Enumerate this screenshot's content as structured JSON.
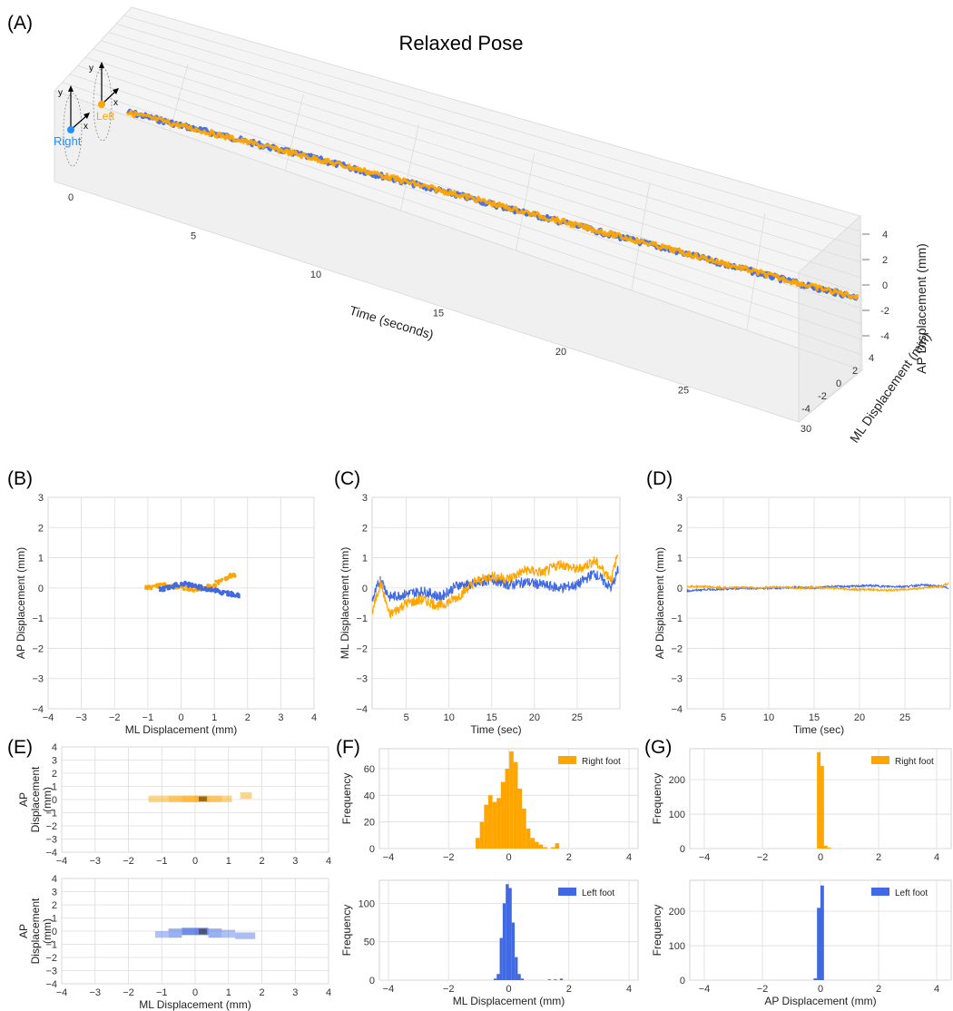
{
  "figure": {
    "colors": {
      "right": "#FFA500",
      "left": "#4169E1"
    }
  },
  "chart_data": [
    {
      "panel": "(A)",
      "type": "line",
      "title": "Relaxed Pose",
      "xlabel": "Time (seconds)",
      "ylabel": "ML Displacement (mm)",
      "zlabel": "AP Displacement (mm)",
      "xticks": [
        "0",
        "5",
        "10",
        "15",
        "20",
        "25",
        "30"
      ],
      "yticks": [
        "4",
        "2",
        "0",
        "-2",
        "-4"
      ],
      "zticks": [
        "4",
        "2",
        "0",
        "-2",
        "-4"
      ],
      "xlim": [
        0,
        30
      ],
      "ylim": [
        -4,
        4
      ],
      "zlim": [
        -4,
        4
      ],
      "inset": {
        "right_label": "Right",
        "left_label": "Left",
        "x_axis": "x",
        "y_axis": "y"
      },
      "series": [
        {
          "color": "#4169E1",
          "x": [
            0,
            2,
            4,
            6,
            8,
            10,
            12,
            14,
            16,
            18,
            20,
            22,
            24,
            26,
            28,
            30
          ],
          "y": [
            -0.4,
            -0.3,
            0.0,
            0.1,
            0.3,
            0.2,
            0.3,
            0.4,
            0.3,
            0.4,
            0.3,
            0.5,
            0.4,
            0.3,
            0.2,
            0.7
          ]
        },
        {
          "color": "#FFA500",
          "x": [
            0,
            2,
            4,
            6,
            8,
            10,
            12,
            14,
            16,
            18,
            20,
            22,
            24,
            26,
            28,
            30
          ],
          "y": [
            -0.6,
            -0.4,
            -0.2,
            0.0,
            0.3,
            0.5,
            0.4,
            0.6,
            0.5,
            0.6,
            0.6,
            0.7,
            0.6,
            0.5,
            0.4,
            0.9
          ]
        }
      ]
    },
    {
      "panel": "(B)",
      "type": "scatter",
      "xlabel": "ML Displacement (mm)",
      "ylabel": "AP Displacement (mm)",
      "xlim": [
        -4,
        4
      ],
      "ylim": [
        -4,
        3
      ],
      "xticks": [
        "−4",
        "−3",
        "−2",
        "−1",
        "0",
        "1",
        "2",
        "3",
        "4"
      ],
      "yticks": [
        "3",
        "2",
        "1",
        "0",
        "−1",
        "−2",
        "−3",
        "−4"
      ],
      "series": [
        {
          "color": "#FFA500",
          "x": [
            -1.1,
            -0.8,
            -0.5,
            -0.2,
            0.1,
            0.4,
            0.7,
            1.0,
            1.3,
            1.5,
            1.6
          ],
          "y": [
            0.0,
            0.05,
            0.1,
            0.05,
            0.0,
            -0.05,
            0.0,
            0.1,
            0.3,
            0.4,
            0.45
          ]
        },
        {
          "color": "#4169E1",
          "x": [
            -0.6,
            -0.3,
            0.0,
            0.3,
            0.6,
            0.9,
            1.2,
            1.5,
            1.7
          ],
          "y": [
            -0.05,
            0.05,
            0.15,
            0.1,
            0.0,
            -0.05,
            -0.15,
            -0.2,
            -0.25
          ]
        }
      ]
    },
    {
      "panel": "(C)",
      "type": "line",
      "xlabel": "Time (sec)",
      "ylabel": "ML Displacement (mm)",
      "xlim": [
        1,
        30
      ],
      "ylim": [
        -4,
        3
      ],
      "xticks": [
        "5",
        "10",
        "15",
        "20",
        "25"
      ],
      "yticks": [
        "3",
        "2",
        "1",
        "0",
        "−1",
        "−2",
        "−3",
        "−4"
      ],
      "series": [
        {
          "color": "#4169E1",
          "x": [
            1,
            2,
            3,
            5,
            7,
            9,
            11,
            13,
            15,
            17,
            19,
            21,
            23,
            25,
            27,
            29,
            29.8
          ],
          "y": [
            -0.4,
            0.3,
            -0.3,
            -0.2,
            -0.1,
            -0.3,
            0.1,
            0.1,
            0.3,
            0.1,
            0.2,
            0.1,
            0.0,
            0.1,
            0.5,
            0.0,
            0.6
          ]
        },
        {
          "color": "#FFA500",
          "x": [
            1,
            2,
            3,
            5,
            7,
            9,
            11,
            13,
            15,
            17,
            19,
            21,
            23,
            25,
            27,
            29,
            29.8
          ],
          "y": [
            -0.8,
            0.2,
            -0.9,
            -0.5,
            -0.4,
            -0.6,
            -0.3,
            0.2,
            0.4,
            0.3,
            0.6,
            0.5,
            0.8,
            0.6,
            0.9,
            0.3,
            1.2
          ]
        }
      ]
    },
    {
      "panel": "(D)",
      "type": "line",
      "xlabel": "Time (sec)",
      "ylabel": "AP Displacement (mm)",
      "xlim": [
        1,
        30
      ],
      "ylim": [
        -4,
        3
      ],
      "xticks": [
        "5",
        "10",
        "15",
        "20",
        "25"
      ],
      "yticks": [
        "3",
        "2",
        "1",
        "0",
        "−1",
        "−2",
        "−3",
        "−4"
      ],
      "series": [
        {
          "color": "#4169E1",
          "x": [
            1,
            3,
            5,
            7,
            9,
            11,
            13,
            15,
            17,
            19,
            21,
            23,
            25,
            27,
            29,
            29.8
          ],
          "y": [
            -0.1,
            -0.05,
            -0.05,
            0.0,
            -0.02,
            0.0,
            0.02,
            0.0,
            0.05,
            0.05,
            0.08,
            0.05,
            0.05,
            0.1,
            0.05,
            0.0
          ]
        },
        {
          "color": "#FFA500",
          "x": [
            1,
            3,
            5,
            7,
            9,
            11,
            13,
            15,
            17,
            19,
            21,
            23,
            25,
            27,
            29,
            29.8
          ],
          "y": [
            0.05,
            0.05,
            0.0,
            0.02,
            0.0,
            0.03,
            0.0,
            0.02,
            0.0,
            -0.05,
            -0.05,
            -0.08,
            -0.05,
            0.0,
            0.05,
            0.15
          ]
        }
      ]
    },
    {
      "panel": "(E)",
      "type": "heatmap",
      "xlabel": "ML Displacement (mm)",
      "ylabel": "AP Displacement (mm)",
      "xlim": [
        -4,
        4
      ],
      "ylim": [
        -4,
        4
      ],
      "xticks": [
        "−4",
        "−3",
        "−2",
        "−1",
        "0",
        "1",
        "2",
        "3",
        "4"
      ],
      "yticks": [
        "4",
        "3",
        "2",
        "1",
        "0",
        "−1",
        "−2",
        "−3",
        "−4"
      ],
      "top": {
        "color": "#FFA500",
        "cells": [
          {
            "x0": -1.4,
            "x1": -0.8,
            "y0": -0.2,
            "y1": 0.3,
            "v": 0.4
          },
          {
            "x0": -0.8,
            "x1": -0.4,
            "y0": -0.2,
            "y1": 0.3,
            "v": 0.7
          },
          {
            "x0": -0.4,
            "x1": 0.0,
            "y0": -0.2,
            "y1": 0.3,
            "v": 0.9
          },
          {
            "x0": 0.0,
            "x1": 0.4,
            "y0": -0.2,
            "y1": 0.3,
            "v": 1.0
          },
          {
            "x0": 0.4,
            "x1": 0.8,
            "y0": -0.2,
            "y1": 0.3,
            "v": 0.7
          },
          {
            "x0": 0.8,
            "x1": 1.1,
            "y0": -0.2,
            "y1": 0.3,
            "v": 0.4
          },
          {
            "x0": 1.35,
            "x1": 1.7,
            "y0": 0.05,
            "y1": 0.55,
            "v": 0.4
          }
        ]
      },
      "bottom": {
        "color": "#4169E1",
        "cells": [
          {
            "x0": -1.2,
            "x1": -0.8,
            "y0": -0.5,
            "y1": 0.0,
            "v": 0.3
          },
          {
            "x0": -0.8,
            "x1": -0.4,
            "y0": -0.5,
            "y1": 0.2,
            "v": 0.5
          },
          {
            "x0": -0.4,
            "x1": 0.0,
            "y0": -0.3,
            "y1": 0.25,
            "v": 0.9
          },
          {
            "x0": 0.0,
            "x1": 0.4,
            "y0": -0.3,
            "y1": 0.25,
            "v": 1.0
          },
          {
            "x0": 0.4,
            "x1": 0.8,
            "y0": -0.5,
            "y1": 0.2,
            "v": 0.5
          },
          {
            "x0": 0.8,
            "x1": 1.2,
            "y0": -0.5,
            "y1": 0.1,
            "v": 0.3
          },
          {
            "x0": 1.2,
            "x1": 1.8,
            "y0": -0.6,
            "y1": -0.1,
            "v": 0.35
          }
        ]
      }
    },
    {
      "panel": "(F)",
      "type": "bar",
      "xlabel": "ML Displacement (mm)",
      "ylabel": "Frequency",
      "xlim": [
        -4.3,
        4.3
      ],
      "xticks": [
        "−4",
        "−2",
        "0",
        "2",
        "4"
      ],
      "top": {
        "legend": "Right foot",
        "color": "#FFA500",
        "ylim": [
          0,
          75
        ],
        "yticks": [
          "60",
          "40",
          "20",
          "0"
        ],
        "bin_width": 0.14,
        "bins": [
          -1.1,
          -0.96,
          -0.82,
          -0.68,
          -0.54,
          -0.4,
          -0.26,
          -0.12,
          0.02,
          0.16,
          0.3,
          0.44,
          0.58,
          0.72,
          0.86,
          1.0,
          1.14,
          1.4,
          1.54
        ],
        "values": [
          8,
          20,
          33,
          40,
          35,
          38,
          50,
          60,
          73,
          65,
          45,
          30,
          15,
          8,
          5,
          3,
          1,
          1,
          4
        ]
      },
      "bottom": {
        "legend": "Left foot",
        "color": "#4169E1",
        "ylim": [
          0,
          130
        ],
        "yticks": [
          "100",
          "50",
          "0"
        ],
        "bin_width": 0.1,
        "bins": [
          -0.5,
          -0.4,
          -0.3,
          -0.2,
          -0.1,
          0.0,
          0.1,
          0.2,
          0.3,
          0.4,
          1.3,
          1.5,
          1.7
        ],
        "values": [
          2,
          8,
          55,
          100,
          125,
          120,
          75,
          30,
          8,
          2,
          1,
          1,
          2
        ]
      }
    },
    {
      "panel": "(G)",
      "type": "bar",
      "xlabel": "AP Displacement (mm)",
      "ylabel": "Frequency",
      "xlim": [
        -4.5,
        4.5
      ],
      "xticks": [
        "−4",
        "−2",
        "0",
        "2",
        "4"
      ],
      "top": {
        "legend": "Right foot",
        "color": "#FFA500",
        "ylim": [
          0,
          290
        ],
        "yticks": [
          "200",
          "100",
          "0"
        ],
        "bin_width": 0.12,
        "bins": [
          -0.12,
          0.0,
          0.12,
          0.24
        ],
        "values": [
          280,
          240,
          8,
          3
        ]
      },
      "bottom": {
        "legend": "Left foot",
        "color": "#4169E1",
        "ylim": [
          0,
          290
        ],
        "yticks": [
          "200",
          "100",
          "0"
        ],
        "bin_width": 0.12,
        "bins": [
          -0.24,
          -0.12,
          0.0
        ],
        "values": [
          5,
          210,
          275
        ]
      }
    }
  ]
}
